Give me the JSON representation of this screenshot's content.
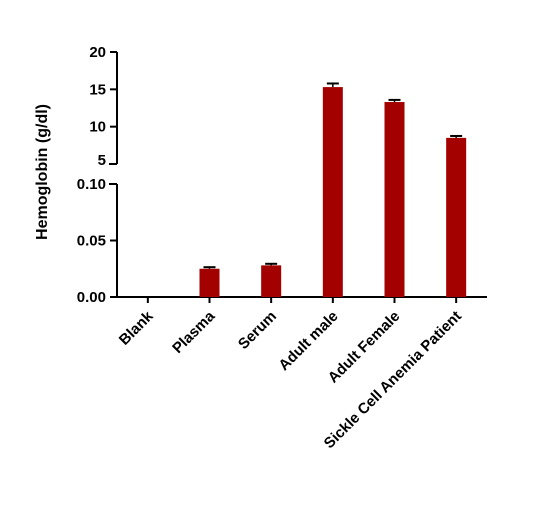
{
  "chart_data": {
    "type": "bar",
    "title": "",
    "xlabel": "",
    "ylabel": "Hemoglobin (g/dl)",
    "categories": [
      "Blank",
      "Plasma",
      "Serum",
      "Adult male",
      "Adult Female",
      "Sickle Cell Anemia Patient"
    ],
    "values": [
      0,
      0.025,
      0.028,
      15.3,
      13.3,
      8.5
    ],
    "errors": [
      0,
      0.0005,
      0.0005,
      0.35,
      0.15,
      0.12
    ],
    "y_axis_break": true,
    "ylim_lower": [
      0,
      0.1
    ],
    "ylim_upper": [
      5,
      20
    ],
    "yticks_lower": [
      "0.00",
      "0.05",
      "0.10"
    ],
    "yticks_upper": [
      "5",
      "10",
      "15",
      "20"
    ],
    "grid": false,
    "legend": "none",
    "bar_color": "#a30000"
  }
}
